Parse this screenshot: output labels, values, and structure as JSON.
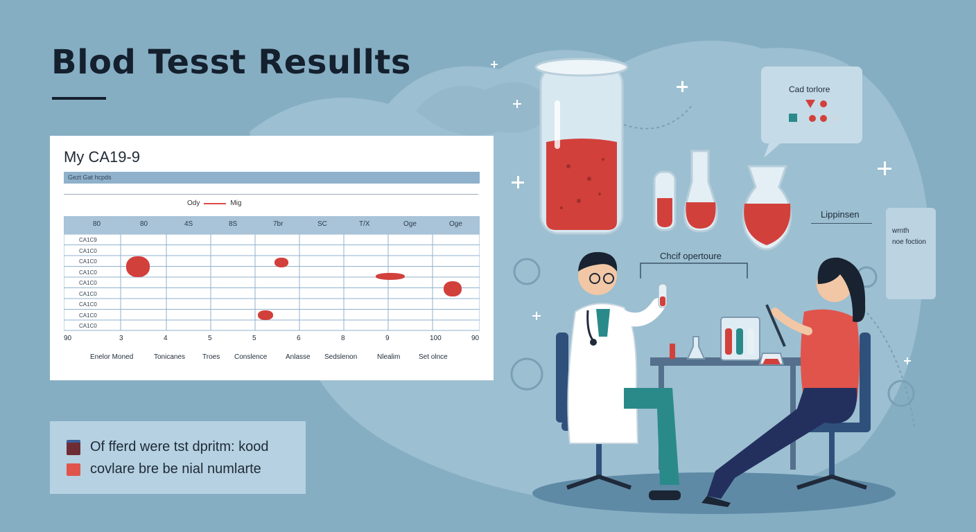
{
  "title": "Blod Tesst Resullts",
  "card": {
    "title": "My CA19-9",
    "band_label": "Gezt Gat hcpds",
    "legend": {
      "left": "Ody",
      "right": "Mig"
    },
    "columns": [
      "80",
      "80",
      "4S",
      "8S",
      "7br",
      "SC",
      "T/X",
      "Oge",
      "Oge"
    ],
    "row_labels": [
      "CA1C9",
      "CA1C0",
      "CA1C0",
      "CA1C0",
      "CA1C0",
      "CA1C0",
      "CA1C0",
      "CA1C0",
      "CA1C0"
    ],
    "x_ticks": [
      "90",
      "3",
      "4",
      "5",
      "5",
      "6",
      "8",
      "9",
      "100",
      "90"
    ],
    "x_categories": [
      "Enelor Moned",
      "Tonicanes",
      "Troes",
      "Conslence",
      "Anlasse",
      "Sedslenon",
      "Nlealim",
      "Set olnce"
    ]
  },
  "legend_box": {
    "items": [
      {
        "label": "Of fferd were tst dpritm: kood",
        "color": "#7a2a2e"
      },
      {
        "label": "covlare bre be nial numlarte",
        "color": "#e0544c"
      }
    ]
  },
  "bubble": {
    "text": "Cad torlore"
  },
  "side_label": "Lippinsen",
  "card2": {
    "line1": "wrnth",
    "line2": "noe foction"
  },
  "chair_label": "Chcif opertoure",
  "colors": {
    "background": "#86aec3",
    "blood": "#d2403c",
    "navy": "#14202e"
  }
}
